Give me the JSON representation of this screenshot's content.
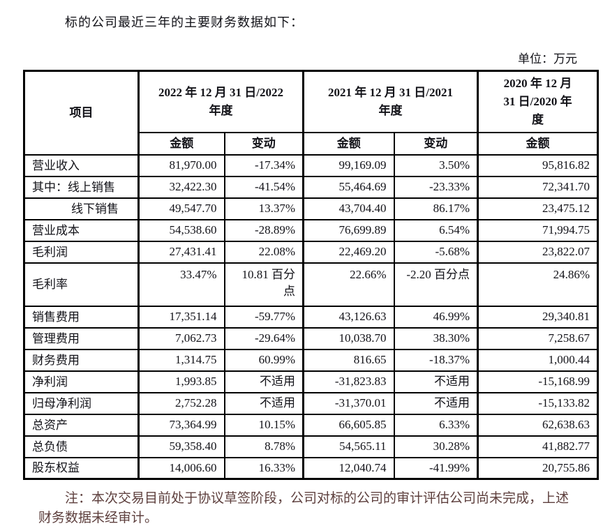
{
  "page": {
    "title": "标的公司最近三年的主要财务数据如下：",
    "unit_label": "单位：万元",
    "note": "注：本次交易目前处于协议草签阶段，公司对标的公司的审计评估公司尚未完成，上述\n财务数据未经审计。"
  },
  "table": {
    "item_header": "项目",
    "year_groups": [
      {
        "label": "2022 年 12 月 31 日/2022\n年度",
        "sub": [
          "金额",
          "变动"
        ]
      },
      {
        "label": "2021 年 12 月 31 日/2021\n年度",
        "sub": [
          "金额",
          "变动"
        ]
      },
      {
        "label": "2020 年 12 月\n31 日/2020 年\n度",
        "sub": [
          "金额"
        ]
      }
    ],
    "rows": [
      {
        "label": "营业收入",
        "indent": false,
        "tall": false,
        "values": [
          "81,970.00",
          "-17.34%",
          "99,169.09",
          "3.50%",
          "95,816.82"
        ]
      },
      {
        "label": "其中：线上销售",
        "indent": false,
        "tall": false,
        "values": [
          "32,422.30",
          "-41.54%",
          "55,464.69",
          "-23.33%",
          "72,341.70"
        ]
      },
      {
        "label": "线下销售",
        "indent": true,
        "tall": false,
        "values": [
          "49,547.70",
          "13.37%",
          "43,704.40",
          "86.17%",
          "23,475.12"
        ]
      },
      {
        "label": "营业成本",
        "indent": false,
        "tall": false,
        "values": [
          "54,538.60",
          "-28.89%",
          "76,699.89",
          "6.54%",
          "71,994.75"
        ]
      },
      {
        "label": "毛利润",
        "indent": false,
        "tall": false,
        "values": [
          "27,431.41",
          "22.08%",
          "22,469.20",
          "-5.68%",
          "23,822.07"
        ]
      },
      {
        "label": "毛利率",
        "indent": false,
        "tall": true,
        "values": [
          "33.47%",
          "10.81 百分\n点",
          "22.66%",
          "-2.20 百分点",
          "24.86%"
        ]
      },
      {
        "label": "销售费用",
        "indent": false,
        "tall": false,
        "values": [
          "17,351.14",
          "-59.77%",
          "43,126.63",
          "46.99%",
          "29,340.81"
        ]
      },
      {
        "label": "管理费用",
        "indent": false,
        "tall": false,
        "values": [
          "7,062.73",
          "-29.64%",
          "10,038.70",
          "38.30%",
          "7,258.67"
        ]
      },
      {
        "label": "财务费用",
        "indent": false,
        "tall": false,
        "values": [
          "1,314.75",
          "60.99%",
          "816.65",
          "-18.37%",
          "1,000.44"
        ]
      },
      {
        "label": "净利润",
        "indent": false,
        "tall": false,
        "values": [
          "1,993.85",
          "不适用",
          "-31,823.83",
          "不适用",
          "-15,168.99"
        ]
      },
      {
        "label": "归母净利润",
        "indent": false,
        "tall": false,
        "values": [
          "2,752.28",
          "不适用",
          "-31,370.01",
          "不适用",
          "-15,133.82"
        ]
      },
      {
        "label": "总资产",
        "indent": false,
        "tall": false,
        "values": [
          "73,364.99",
          "10.15%",
          "66,605.85",
          "6.33%",
          "62,638.63"
        ]
      },
      {
        "label": "总负债",
        "indent": false,
        "tall": false,
        "values": [
          "59,358.40",
          "8.78%",
          "54,565.11",
          "30.28%",
          "41,882.77"
        ]
      },
      {
        "label": "股东权益",
        "indent": false,
        "tall": false,
        "values": [
          "14,006.60",
          "16.33%",
          "12,040.74",
          "-41.99%",
          "20,755.86"
        ]
      }
    ]
  },
  "colors": {
    "background": "#ffffff",
    "table_border": "#000000",
    "body_text": "#121218",
    "note_text": "#5d3f3d"
  }
}
